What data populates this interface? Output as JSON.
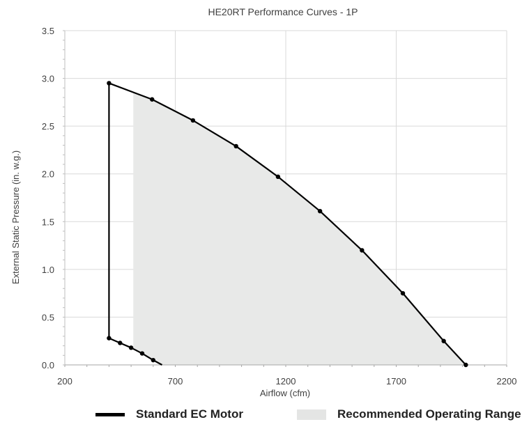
{
  "chart_data": {
    "type": "line",
    "title": "HE20RT Performance Curves - 1P",
    "xlabel": "Airflow (cfm)",
    "ylabel": "External Static Pressure (in. w.g.)",
    "xlim": [
      200,
      2200
    ],
    "ylim": [
      0,
      3.5
    ],
    "x_ticks": [
      "200",
      "700",
      "1200",
      "1700",
      "2200"
    ],
    "y_ticks": [
      "0.0",
      "0.5",
      "1.0",
      "1.5",
      "2.0",
      "2.5",
      "3.0",
      "3.5"
    ],
    "grid": true,
    "legend_position": "bottom",
    "series": [
      {
        "name": "Standard EC Motor",
        "color": "#000000",
        "upper_curve": {
          "x": [
            400,
            595,
            780,
            975,
            1165,
            1355,
            1545,
            1730,
            1915,
            2015
          ],
          "y": [
            2.95,
            2.78,
            2.56,
            2.29,
            1.97,
            1.61,
            1.2,
            0.75,
            0.25,
            0.0
          ]
        },
        "lower_curve": {
          "x": [
            400,
            450,
            500,
            550,
            600,
            640
          ],
          "y": [
            0.28,
            0.23,
            0.18,
            0.12,
            0.05,
            0.0
          ]
        }
      }
    ],
    "range": {
      "name": "Recommended Operating Range",
      "color": "#e8e9e8",
      "x_min": 510
    }
  }
}
